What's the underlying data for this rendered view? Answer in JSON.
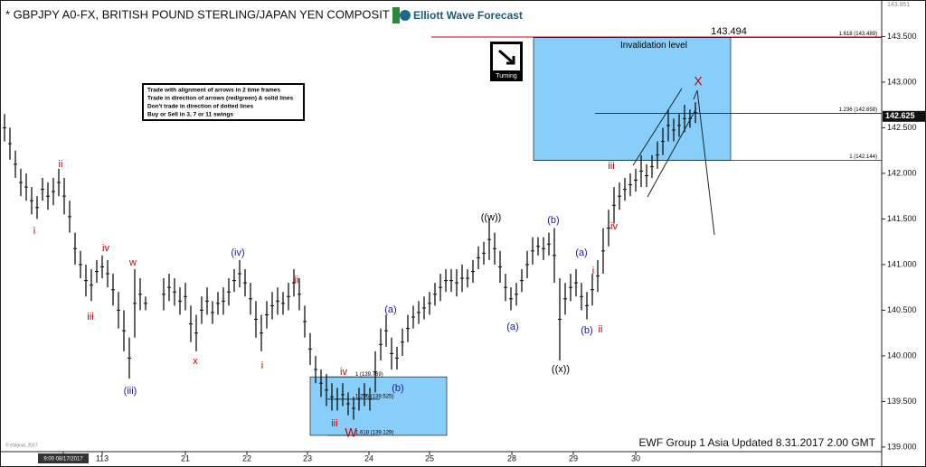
{
  "chart_data": {
    "type": "range-bar",
    "title": "* GBPJPY A0-FX, BRITISH POUND STERLING/JAPAN YEN COMPOSIT",
    "logo": "Elliott Wave Forecast",
    "icon_label": "Turning",
    "rules": [
      "Trade with alignment of arrows in 2 time frames",
      "Trade in direction of arrows (red/green) & solid lines",
      "Don't trade in direction of dotted lines",
      "Buy or Sell in 3, 7 or 11 swings"
    ],
    "footer": "EWF Group 1 Asia Updated 8.31.2017 2.00 GMT",
    "copyright": "© eSignal, 2017",
    "axis_top_value": 143.851,
    "last_price": 142.625,
    "invalidation": {
      "label": "Invalidation level",
      "value": 143.494
    },
    "upper_levels": [
      {
        "label": "1.618 (143.489)",
        "value": 143.489
      },
      {
        "label": "1.236 (142.658)",
        "value": 142.658
      },
      {
        "label": "1 (142.144)",
        "value": 142.144
      }
    ],
    "lower_levels": [
      {
        "label": "1 (139.769)",
        "value": 139.769
      },
      {
        "label": "1.236 (139.525)",
        "value": 139.525
      },
      {
        "label": "1.618 (139.129)",
        "value": 139.129
      }
    ],
    "annotations": [
      {
        "text": "i",
        "color": "#c00000"
      },
      {
        "text": "ii",
        "color": "#c00000"
      },
      {
        "text": "iii",
        "color": "#c00000"
      },
      {
        "text": "iv",
        "color": "#c00000"
      },
      {
        "text": "w",
        "color": "#c00000"
      },
      {
        "text": "(iii)",
        "color": "#1a1aa0"
      },
      {
        "text": "x",
        "color": "#c00000"
      },
      {
        "text": "(iv)",
        "color": "#1a1aa0"
      },
      {
        "text": "i",
        "color": "#c00000"
      },
      {
        "text": "ii",
        "color": "#c00000"
      },
      {
        "text": "iv",
        "color": "#c00000"
      },
      {
        "text": "iii",
        "color": "#c00000"
      },
      {
        "text": "W",
        "color": "#c00000"
      },
      {
        "text": "(a)",
        "color": "#1a1aa0"
      },
      {
        "text": "(b)",
        "color": "#1a1aa0"
      },
      {
        "text": "((w))",
        "color": "#000000"
      },
      {
        "text": "(a)",
        "color": "#1a1aa0"
      },
      {
        "text": "(b)",
        "color": "#1a1aa0"
      },
      {
        "text": "((x))",
        "color": "#000000"
      },
      {
        "text": "(a)",
        "color": "#1a1aa0"
      },
      {
        "text": "(b)",
        "color": "#1a1aa0"
      },
      {
        "text": "i",
        "color": "#c00000"
      },
      {
        "text": "ii",
        "color": "#c00000"
      },
      {
        "text": "iii",
        "color": "#c00000"
      },
      {
        "text": "iv",
        "color": "#c00000"
      },
      {
        "text": "X",
        "color": "#c00000"
      }
    ],
    "color": "#111111",
    "box_color": "#87cefa",
    "x": [
      5,
      11,
      17,
      23,
      29,
      35,
      41,
      47,
      53,
      59,
      65,
      71,
      77,
      83,
      89,
      95,
      101,
      107,
      113,
      119,
      125,
      131,
      137,
      143,
      149,
      155,
      161,
      181,
      187,
      193,
      199,
      205,
      211,
      217,
      223,
      229,
      235,
      241,
      247,
      253,
      259,
      265,
      271,
      277,
      283,
      289,
      295,
      301,
      307,
      313,
      319,
      325,
      331,
      337,
      343,
      349,
      355,
      361,
      367,
      373,
      379,
      385,
      391,
      397,
      403,
      409,
      415,
      421,
      427,
      433,
      439,
      445,
      451,
      457,
      463,
      469,
      475,
      481,
      487,
      493,
      499,
      505,
      511,
      517,
      523,
      529,
      535,
      541,
      547,
      553,
      559,
      565,
      571,
      577,
      583,
      589,
      595,
      601,
      607,
      613,
      619,
      625,
      631,
      637,
      643,
      649,
      655,
      661,
      667,
      673,
      679,
      685,
      691,
      697,
      703,
      709,
      715,
      721,
      727,
      733,
      739,
      745,
      751,
      757,
      763,
      769
    ],
    "high": [
      142.65,
      142.5,
      142.25,
      142.05,
      142.0,
      141.85,
      141.75,
      141.95,
      141.9,
      141.95,
      142.05,
      141.95,
      141.7,
      141.35,
      141.15,
      141.0,
      140.95,
      141.05,
      141.1,
      141.05,
      140.9,
      140.7,
      140.5,
      140.2,
      140.95,
      140.85,
      140.65,
      140.85,
      140.9,
      140.85,
      140.75,
      140.8,
      140.55,
      140.45,
      140.65,
      140.75,
      140.6,
      140.7,
      140.75,
      140.85,
      140.95,
      141.05,
      140.95,
      140.8,
      140.6,
      140.45,
      140.6,
      140.7,
      140.75,
      140.7,
      140.8,
      140.95,
      140.85,
      140.55,
      140.25,
      140.0,
      139.85,
      139.8,
      139.7,
      139.65,
      139.7,
      139.6,
      139.55,
      139.65,
      139.7,
      139.65,
      140.05,
      140.3,
      140.45,
      140.2,
      140.1,
      140.3,
      140.45,
      140.55,
      140.6,
      140.65,
      140.7,
      140.8,
      140.9,
      140.95,
      140.95,
      140.95,
      141.0,
      140.95,
      141.05,
      141.2,
      141.25,
      141.5,
      141.35,
      141.15,
      140.9,
      140.75,
      140.8,
      140.95,
      141.15,
      141.3,
      141.3,
      141.3,
      141.35,
      141.4,
      140.85,
      140.8,
      140.9,
      140.95,
      140.8,
      140.7,
      140.9,
      141.05,
      141.4,
      141.6,
      141.85,
      141.9,
      141.95,
      142.0,
      142.05,
      142.2,
      142.1,
      142.2,
      142.35,
      142.5,
      142.7,
      142.6,
      142.65,
      142.75,
      142.7,
      142.78
    ],
    "low": [
      142.35,
      142.15,
      141.95,
      141.75,
      141.7,
      141.55,
      141.5,
      141.7,
      141.6,
      141.65,
      141.75,
      141.55,
      141.35,
      141.0,
      140.85,
      140.65,
      140.6,
      140.8,
      140.85,
      140.75,
      140.55,
      140.3,
      140.05,
      139.75,
      140.2,
      140.5,
      140.5,
      140.5,
      140.6,
      140.55,
      140.45,
      140.5,
      140.15,
      140.05,
      140.35,
      140.45,
      140.35,
      140.45,
      140.45,
      140.55,
      140.7,
      140.75,
      140.65,
      140.45,
      140.2,
      140.05,
      140.3,
      140.4,
      140.45,
      140.45,
      140.5,
      140.65,
      140.5,
      140.2,
      139.9,
      139.7,
      139.55,
      139.45,
      139.4,
      139.4,
      139.45,
      139.35,
      139.3,
      139.4,
      139.45,
      139.4,
      139.6,
      139.95,
      140.1,
      139.85,
      139.85,
      140.0,
      140.15,
      140.3,
      140.35,
      140.4,
      140.45,
      140.55,
      140.6,
      140.7,
      140.7,
      140.65,
      140.7,
      140.75,
      140.8,
      140.95,
      141.0,
      141.05,
      141.0,
      140.8,
      140.6,
      140.5,
      140.55,
      140.7,
      140.85,
      141.0,
      141.1,
      141.05,
      141.1,
      140.8,
      139.95,
      140.45,
      140.6,
      140.65,
      140.5,
      140.4,
      140.55,
      140.7,
      140.9,
      141.2,
      141.45,
      141.6,
      141.7,
      141.75,
      141.8,
      141.85,
      141.85,
      141.95,
      142.05,
      142.2,
      142.35,
      142.35,
      142.4,
      142.45,
      142.5,
      142.55
    ],
    "xlim": [
      0,
      975
    ],
    "ylim": [
      138.95,
      143.9
    ],
    "xticks": [
      {
        "value": 70,
        "label": "9:00 08/17/2017"
      },
      113,
      {
        "value": 205,
        "label": "21"
      },
      {
        "value": 273,
        "label": "22"
      },
      {
        "value": 340,
        "label": "23"
      },
      {
        "value": 408,
        "label": "24"
      },
      {
        "value": 475,
        "label": "25"
      },
      {
        "value": 566,
        "label": "28"
      },
      {
        "value": 634,
        "label": "29"
      },
      {
        "value": 703,
        "label": "30"
      }
    ],
    "yticks": [
      {
        "value": 143.5,
        "label": "143.500"
      },
      {
        "value": 143,
        "label": "143.000"
      },
      {
        "value": 142.5,
        "label": "142.500"
      },
      {
        "value": 142,
        "label": "142.000"
      },
      {
        "value": 141.5,
        "label": "141.500"
      },
      {
        "value": 141,
        "label": "141.000"
      },
      {
        "value": 140.5,
        "label": "140.500"
      },
      {
        "value": 140,
        "label": "140.000"
      },
      {
        "value": 139.5,
        "label": "139.500"
      },
      {
        "value": 139,
        "label": "139.000"
      }
    ]
  }
}
